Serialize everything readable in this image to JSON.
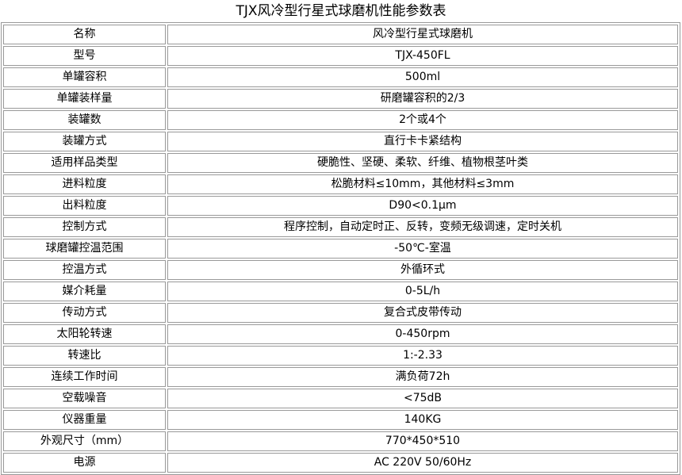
{
  "title": "TJX风冷型行星式球磨机性能参数表",
  "table": {
    "rows": [
      [
        "名称",
        "风冷型行星式球磨机"
      ],
      [
        "型号",
        "TJX-450FL"
      ],
      [
        "单罐容积",
        "500ml"
      ],
      [
        "单罐装样量",
        "研磨罐容积的2/3"
      ],
      [
        "装罐数",
        "2个或4个"
      ],
      [
        "装罐方式",
        "直行卡卡紧结构"
      ],
      [
        "适用样品类型",
        "硬脆性、坚硬、柔软、纤维、植物根茎叶类"
      ],
      [
        "进料粒度",
        "松脆材料≤10mm，其他材料≤3mm"
      ],
      [
        "出料粒度",
        "D90<0.1μm"
      ],
      [
        "控制方式",
        "程序控制，自动定时正、反转，变频无级调速，定时关机"
      ],
      [
        "球磨罐控温范围",
        "-50℃-室温"
      ],
      [
        "控温方式",
        "外循环式"
      ],
      [
        "媒介耗量",
        "0-5L/h"
      ],
      [
        "传动方式",
        "复合式皮带传动"
      ],
      [
        "太阳轮转速",
        "0-450rpm"
      ],
      [
        "转速比",
        "1:-2.33"
      ],
      [
        "连续工作时间",
        "满负荷72h"
      ],
      [
        "空载噪音",
        "<75dB"
      ],
      [
        "仪器重量",
        "140KG"
      ],
      [
        "外观尺寸（mm）",
        "770*450*510"
      ],
      [
        "电源",
        "AC 220V 50/60Hz"
      ]
    ]
  }
}
